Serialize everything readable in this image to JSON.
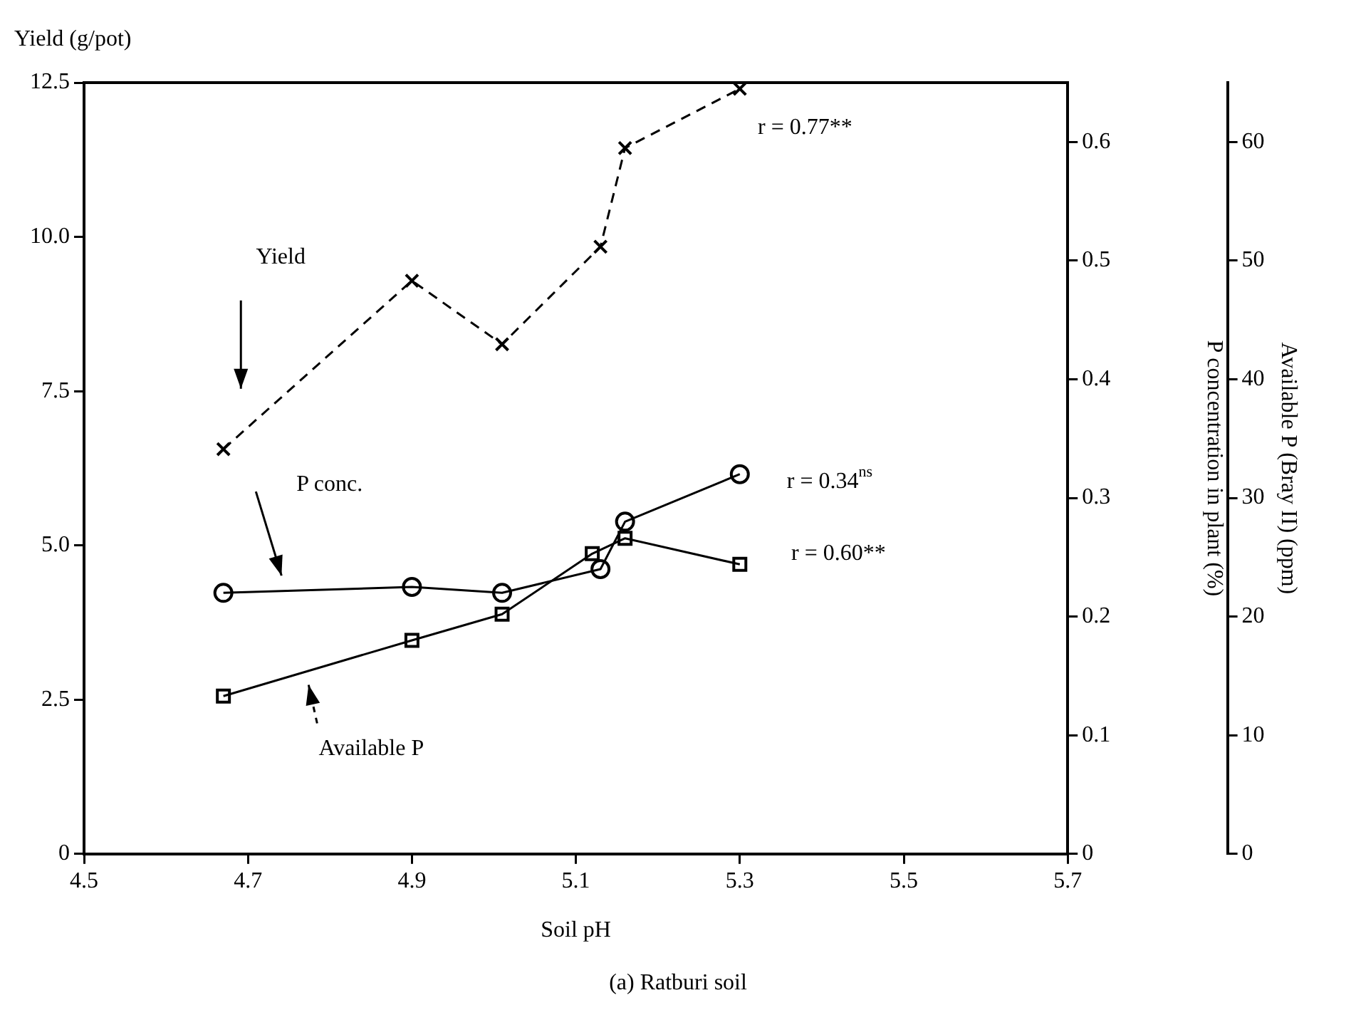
{
  "chart_data": {
    "type": "line",
    "title": "(a) Ratburi soil",
    "xlabel": "Soil pH",
    "ylabel": "Yield (g/pot)",
    "y2label": "P concentration in plant (%)",
    "y3label": "Available P (Bray II) (ppm)",
    "x": [
      4.67,
      4.9,
      5.01,
      5.13,
      5.16,
      5.3
    ],
    "series": [
      {
        "color": "#000000",
        "marker": "cross",
        "line_style": "dashed",
        "values": [
          6.56,
          9.29,
          8.26,
          9.84,
          11.44,
          12.4
        ]
      },
      {
        "color": "#000000",
        "marker": "circle",
        "line_style": "solid",
        "axis": "y2",
        "values": [
          0.22,
          0.225,
          0.22,
          0.24,
          0.28,
          0.32
        ]
      },
      {
        "color": "#000000",
        "marker": "square",
        "line_style": "solid",
        "axis": "y3",
        "x": [
          4.67,
          4.9,
          5.01,
          5.12,
          5.16,
          5.3
        ],
        "values": [
          13.3,
          18.0,
          20.2,
          25.3,
          26.6,
          24.4
        ]
      }
    ],
    "xlim": [
      4.5,
      5.7
    ],
    "xticks": [
      4.5,
      4.7,
      4.9,
      5.1,
      5.3,
      5.5,
      5.7
    ],
    "ylim": [
      0,
      12.5
    ],
    "yticks": [
      0,
      2.5,
      {
        "value": 5,
        "label": "5.0"
      },
      7.5,
      {
        "value": 10,
        "label": "10.0"
      },
      12.5
    ],
    "y2lim": [
      0,
      0.65
    ],
    "y2ticks": [
      0,
      0.1,
      0.2,
      0.3,
      0.4,
      0.5,
      0.6
    ],
    "y3lim": [
      0,
      65
    ],
    "y3ticks": [
      0,
      10,
      20,
      30,
      40,
      50,
      60
    ],
    "annotations": [
      "Yield",
      "P conc.",
      "Available P",
      "r = 0.77**",
      "r = 0.34$^{ns}$",
      "r = 0.60**"
    ],
    "grid": false,
    "legend": false
  }
}
